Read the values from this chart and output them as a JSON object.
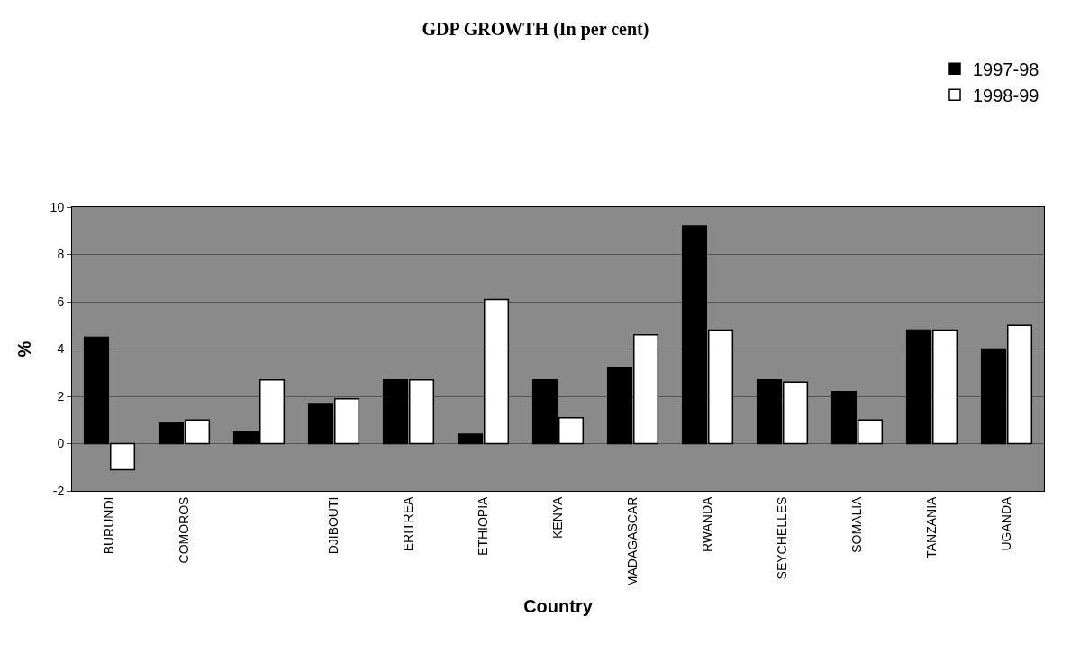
{
  "chart_data": {
    "type": "bar",
    "title": "GDP GROWTH (In per cent)",
    "xlabel": "Country",
    "ylabel": "%",
    "categories": [
      "BURUNDI",
      "COMOROS",
      null,
      "DJIBOUTI",
      "ERITREA",
      "ETHIOPIA",
      "KENYA",
      "MADAGASCAR",
      "RWANDA",
      "SEYCHELLES",
      "SOMALIA",
      "TANZANIA",
      "UGANDA"
    ],
    "series": [
      {
        "name": "1997-98",
        "color": "#000000",
        "values": [
          4.5,
          0.9,
          0.5,
          1.7,
          2.7,
          0.4,
          2.7,
          3.2,
          9.2,
          2.7,
          2.2,
          4.8,
          4.0
        ]
      },
      {
        "name": "1998-99",
        "color": "#ffffff",
        "values": [
          -1.1,
          1.0,
          2.7,
          1.9,
          2.7,
          6.1,
          1.1,
          4.6,
          4.8,
          2.6,
          1.0,
          4.8,
          5.0
        ]
      }
    ],
    "ylim": [
      -2,
      10
    ],
    "yticks": [
      -2,
      0,
      2,
      4,
      6,
      8,
      10
    ],
    "grid": "y",
    "legend": "top right"
  }
}
